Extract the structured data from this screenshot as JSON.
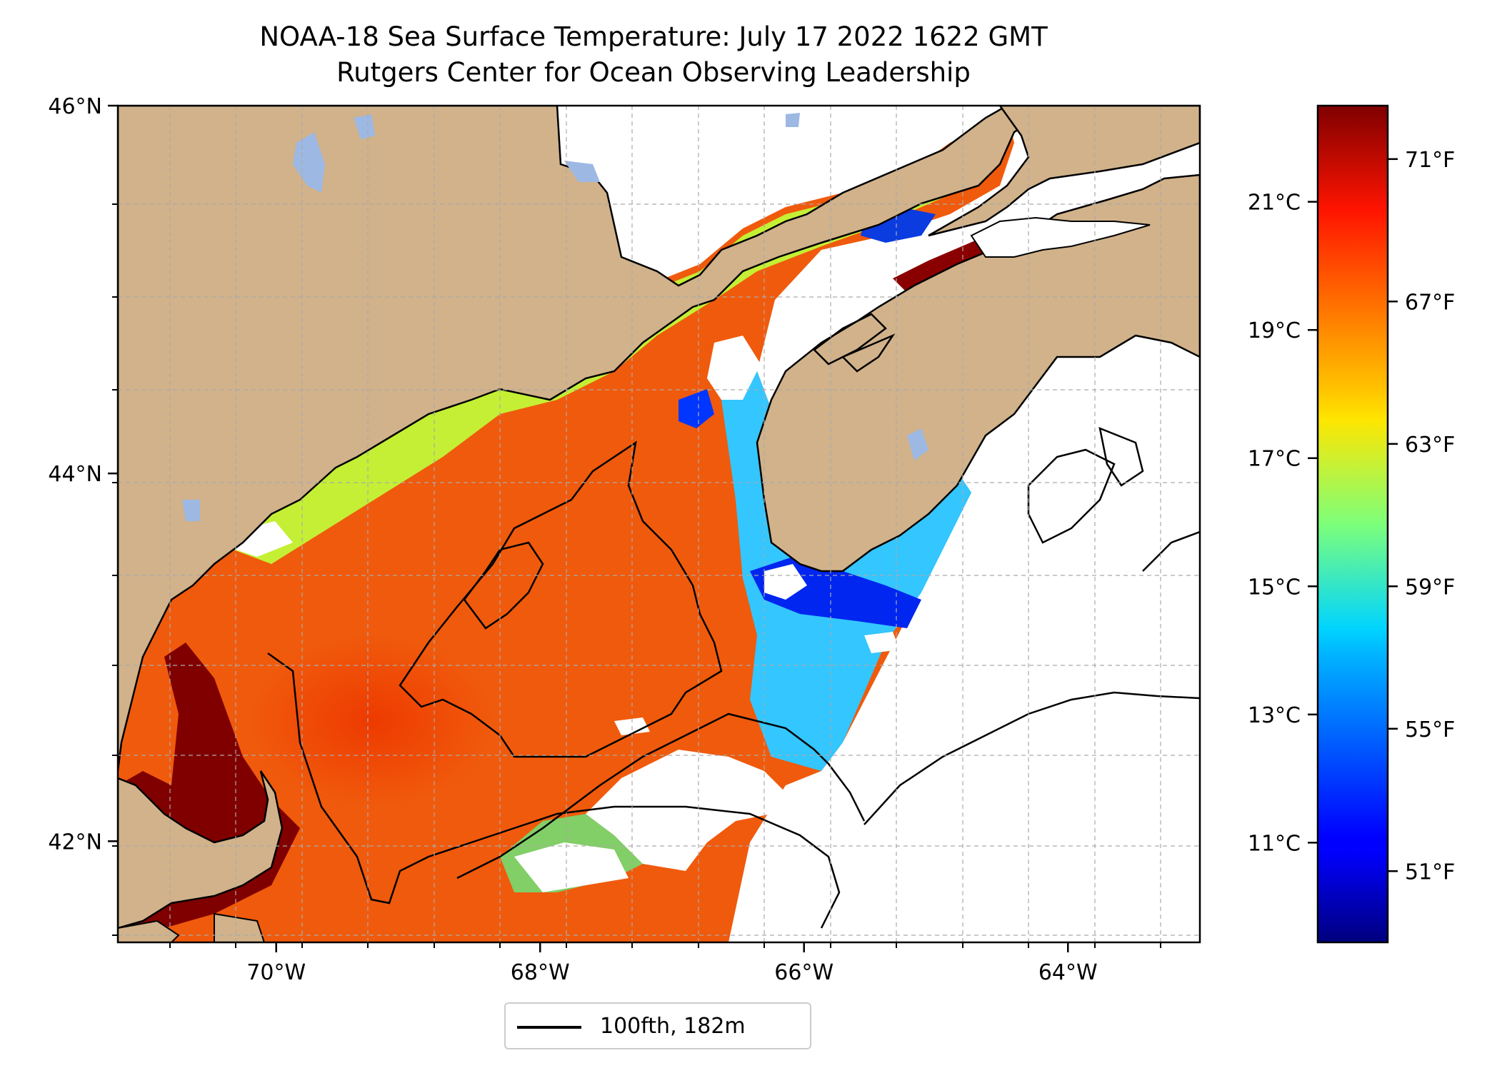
{
  "title": "NOAA-18 Sea Surface Temperature: July 17 2022 1622 GMT",
  "subtitle": "Rutgers Center for Ocean Observing Leadership",
  "map": {
    "lon_range": [
      -71.2,
      -63.0
    ],
    "lat_range": [
      41.45,
      46.0
    ],
    "lon_ticks": [
      {
        "value": -70,
        "label": "70°W"
      },
      {
        "value": -68,
        "label": "68°W"
      },
      {
        "value": -66,
        "label": "66°W"
      },
      {
        "value": -64,
        "label": "64°W"
      }
    ],
    "lat_ticks": [
      {
        "value": 46,
        "label": "46°N"
      },
      {
        "value": 44,
        "label": "44°N"
      },
      {
        "value": 42,
        "label": "42°N"
      }
    ],
    "gridlines": true,
    "land_color": "#d1b28a",
    "lake_color": "#9db8e3",
    "no_data_color": "#ffffff"
  },
  "colorbar": {
    "colormap": "jet",
    "range_f": [
      49.0,
      72.5
    ],
    "celsius_ticks": [
      {
        "value": 21,
        "label": "21°C"
      },
      {
        "value": 19,
        "label": "19°C"
      },
      {
        "value": 17,
        "label": "17°C"
      },
      {
        "value": 15,
        "label": "15°C"
      },
      {
        "value": 13,
        "label": "13°C"
      },
      {
        "value": 11,
        "label": "11°C"
      }
    ],
    "fahrenheit_ticks": [
      {
        "value": 71,
        "label": "71°F"
      },
      {
        "value": 67,
        "label": "67°F"
      },
      {
        "value": 63,
        "label": "63°F"
      },
      {
        "value": 59,
        "label": "59°F"
      },
      {
        "value": 55,
        "label": "55°F"
      },
      {
        "value": 51,
        "label": "51°F"
      }
    ]
  },
  "legend": {
    "entry": "100fth, 182m",
    "location": "below-map"
  }
}
